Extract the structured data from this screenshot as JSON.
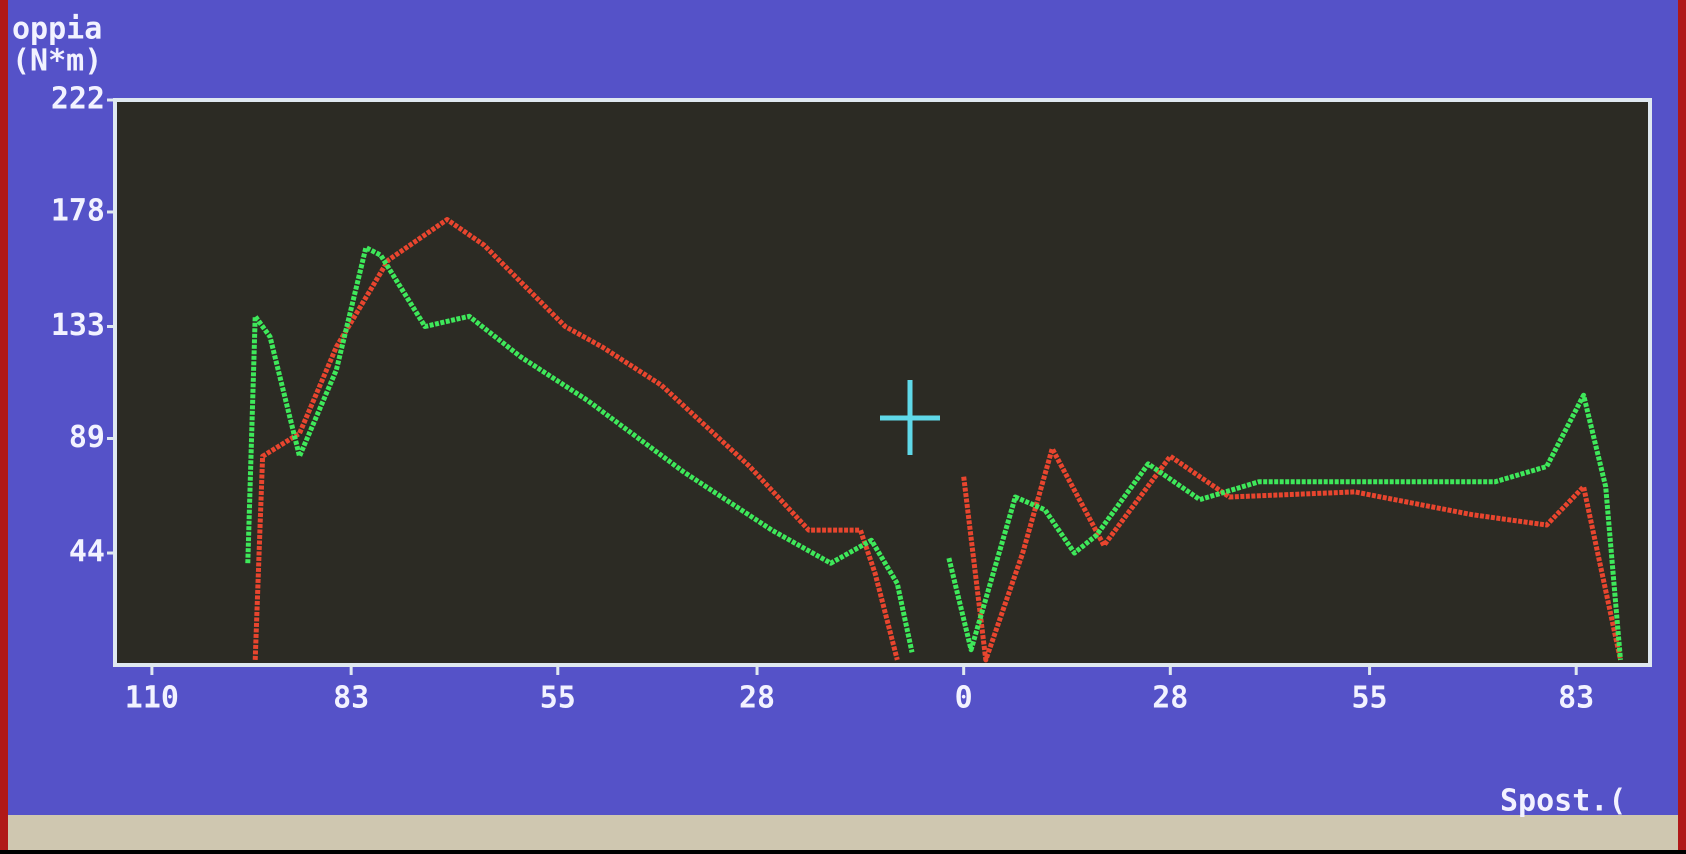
{
  "chart_data": {
    "type": "line",
    "ylabel_lines": [
      "oppia",
      "(N*m)"
    ],
    "xlabel": "Spost.(",
    "xlim": [
      -115,
      93
    ],
    "ylim": [
      0,
      222
    ],
    "xticks": [
      {
        "value": -110,
        "label": "110"
      },
      {
        "value": -83,
        "label": "83"
      },
      {
        "value": -55,
        "label": "55"
      },
      {
        "value": -28,
        "label": "28"
      },
      0,
      28,
      55,
      83
    ],
    "yticks": [
      44,
      89,
      133,
      178,
      222
    ],
    "series": [
      {
        "color": "#e8452e",
        "x": [
          -96,
          -95,
          -90,
          -85,
          -78,
          -70,
          -65,
          -54,
          -49,
          -41,
          -29,
          -21,
          -14,
          -12,
          -9,
          null,
          0,
          3,
          8,
          12,
          19,
          28,
          36,
          53,
          69,
          79,
          84,
          89
        ],
        "values": [
          2,
          82,
          91,
          125,
          159,
          175,
          165,
          133,
          125,
          110,
          78,
          53,
          53,
          36,
          2,
          null,
          74,
          2,
          44,
          85,
          47,
          82,
          66,
          68,
          59,
          55,
          70,
          2
        ]
      },
      {
        "color": "#3ee85a",
        "x": [
          -97,
          -96,
          -94,
          -90,
          -85,
          -81,
          -79,
          -73,
          -67,
          -60,
          -51,
          -38,
          -26,
          -18,
          -12.5,
          -9,
          -7,
          null,
          -2,
          1,
          7,
          11,
          15,
          18,
          25,
          32,
          40,
          56,
          72,
          79,
          84,
          87,
          89
        ],
        "values": [
          40,
          137,
          129,
          82,
          116,
          164,
          161,
          133,
          137,
          121,
          104,
          76,
          53,
          40,
          49,
          32,
          5,
          null,
          42,
          6,
          66,
          61,
          44,
          51,
          79,
          65,
          72,
          72,
          72,
          78,
          106,
          70,
          2
        ]
      }
    ]
  }
}
